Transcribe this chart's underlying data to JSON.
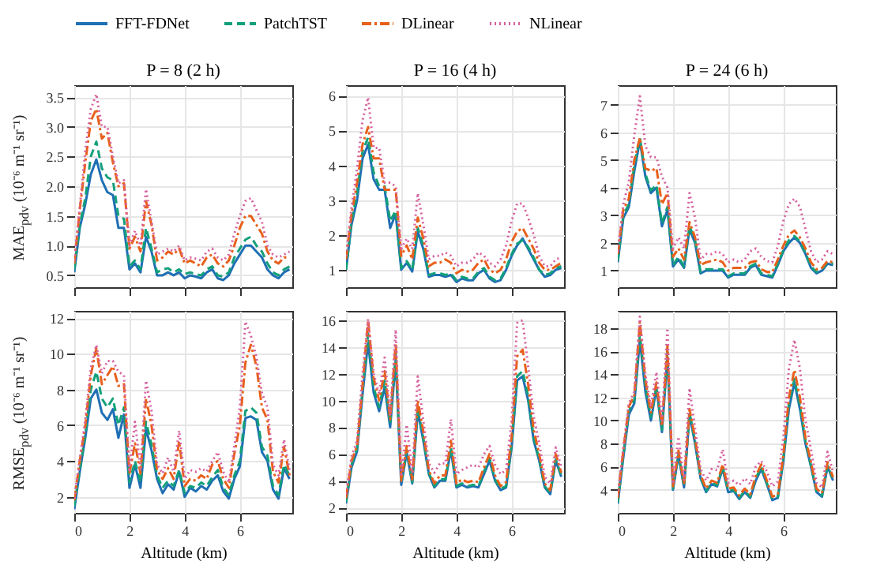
{
  "chart_data": [
    {
      "type": "line",
      "title": "P = 8 (2 h)",
      "ylabel": "MAE$_{pdv}$ (10⁻⁶ m⁻¹ sr⁻¹)",
      "legend": "top",
      "grid": true,
      "tick_labels": "y",
      "x": [
        0,
        0.2,
        0.4,
        0.6,
        0.8,
        1.0,
        1.2,
        1.4,
        1.6,
        1.8,
        2.0,
        2.2,
        2.4,
        2.6,
        2.8,
        3.0,
        3.2,
        3.4,
        3.6,
        3.8,
        4.0,
        4.2,
        4.4,
        4.6,
        4.8,
        5.0,
        5.2,
        5.4,
        5.6,
        5.8,
        6.0,
        6.2,
        6.4,
        6.6,
        6.8,
        7.0,
        7.2,
        7.4,
        7.6,
        7.8
      ],
      "xlim": [
        0,
        7.9
      ],
      "xticks": [
        {
          "value": 0,
          "label": null
        },
        {
          "value": 2,
          "label": null
        },
        {
          "value": 4,
          "label": null
        },
        {
          "value": 6,
          "label": null
        }
      ],
      "ylim": [
        0.3,
        3.7
      ],
      "yticks": [
        0.5,
        {
          "value": 1,
          "label": "1.0"
        },
        1.5,
        {
          "value": 2,
          "label": "2.0"
        },
        2.5,
        {
          "value": 3,
          "label": "3.0"
        },
        3.5
      ],
      "series": [
        {
          "name": "FFT-FDNet",
          "color": "#1f6fb4",
          "line_style": "solid",
          "values": [
            0.55,
            1.3,
            1.7,
            2.2,
            2.45,
            2.1,
            1.9,
            1.85,
            1.3,
            1.3,
            0.6,
            0.7,
            0.55,
            1.15,
            0.9,
            0.5,
            0.5,
            0.55,
            0.5,
            0.55,
            0.45,
            0.5,
            0.48,
            0.45,
            0.55,
            0.6,
            0.45,
            0.42,
            0.5,
            0.7,
            0.85,
            1.0,
            1.0,
            0.9,
            0.8,
            0.6,
            0.5,
            0.45,
            0.55,
            0.6
          ]
        },
        {
          "name": "PatchTST",
          "color": "#12a07a",
          "line_style": "dashed",
          "values": [
            0.6,
            1.35,
            1.8,
            2.5,
            2.75,
            2.3,
            2.15,
            2.1,
            1.5,
            1.45,
            0.65,
            0.75,
            0.6,
            1.3,
            0.95,
            0.55,
            0.6,
            0.62,
            0.55,
            0.6,
            0.52,
            0.55,
            0.52,
            0.5,
            0.6,
            0.65,
            0.5,
            0.48,
            0.55,
            0.8,
            0.95,
            1.1,
            1.15,
            1.0,
            0.9,
            0.7,
            0.55,
            0.5,
            0.6,
            0.65
          ]
        },
        {
          "name": "DLinear",
          "color": "#e8601c",
          "line_style": "dashdot",
          "values": [
            0.7,
            1.6,
            2.4,
            3.1,
            3.3,
            2.8,
            2.9,
            2.4,
            2.0,
            2.05,
            0.95,
            1.15,
            0.9,
            1.75,
            1.35,
            0.75,
            0.8,
            0.9,
            0.85,
            0.95,
            0.7,
            0.75,
            0.7,
            0.65,
            0.8,
            0.85,
            0.7,
            0.65,
            0.75,
            1.0,
            1.3,
            1.5,
            1.5,
            1.35,
            1.2,
            0.9,
            0.75,
            0.7,
            0.8,
            0.8
          ]
        },
        {
          "name": "NLinear",
          "color": "#d6609e",
          "line_style": "dotted",
          "values": [
            0.75,
            1.65,
            2.6,
            3.3,
            3.55,
            3.0,
            3.0,
            2.5,
            2.05,
            2.1,
            1.0,
            1.25,
            1.0,
            1.95,
            1.4,
            0.85,
            0.9,
            0.95,
            0.9,
            1.0,
            0.75,
            0.8,
            0.78,
            0.75,
            0.9,
            0.95,
            0.8,
            0.75,
            0.85,
            1.2,
            1.5,
            1.75,
            1.8,
            1.6,
            1.4,
            1.0,
            0.85,
            0.8,
            0.85,
            0.9
          ]
        }
      ]
    },
    {
      "type": "line",
      "title": "P = 16 (4 h)",
      "grid": true,
      "tick_labels": "y",
      "x": [
        0,
        0.2,
        0.4,
        0.6,
        0.8,
        1.0,
        1.2,
        1.4,
        1.6,
        1.8,
        2.0,
        2.2,
        2.4,
        2.6,
        2.8,
        3.0,
        3.2,
        3.4,
        3.6,
        3.8,
        4.0,
        4.2,
        4.4,
        4.6,
        4.8,
        5.0,
        5.2,
        5.4,
        5.6,
        5.8,
        6.0,
        6.2,
        6.4,
        6.6,
        6.8,
        7.0,
        7.2,
        7.4,
        7.6,
        7.8
      ],
      "xlim": [
        0,
        7.9
      ],
      "xticks": [
        {
          "value": 0,
          "label": null
        },
        {
          "value": 2,
          "label": null
        },
        {
          "value": 4,
          "label": null
        },
        {
          "value": 6,
          "label": null
        }
      ],
      "ylim": [
        0.5,
        6.3
      ],
      "yticks": [
        1,
        2,
        3,
        4,
        5,
        6
      ],
      "series": [
        {
          "name": "FFT-FDNet",
          "color": "#1f6fb4",
          "line_style": "solid",
          "values": [
            1.0,
            2.3,
            3.0,
            4.2,
            4.6,
            3.6,
            3.3,
            3.3,
            2.2,
            2.6,
            1.0,
            1.2,
            0.95,
            2.1,
            1.6,
            0.8,
            0.85,
            0.85,
            0.8,
            0.85,
            0.65,
            0.75,
            0.7,
            0.7,
            0.9,
            1.0,
            0.75,
            0.65,
            0.7,
            1.0,
            1.4,
            1.7,
            1.9,
            1.6,
            1.3,
            1.0,
            0.8,
            0.85,
            1.0,
            1.05
          ]
        },
        {
          "name": "PatchTST",
          "color": "#12a07a",
          "line_style": "dashed",
          "values": [
            1.0,
            2.4,
            3.2,
            4.4,
            4.8,
            3.8,
            3.4,
            3.4,
            2.4,
            2.7,
            1.05,
            1.25,
            1.0,
            2.2,
            1.7,
            0.85,
            0.9,
            0.9,
            0.85,
            0.9,
            0.7,
            0.8,
            0.75,
            0.75,
            0.95,
            1.05,
            0.8,
            0.7,
            0.75,
            1.05,
            1.45,
            1.75,
            1.85,
            1.65,
            1.35,
            1.0,
            0.85,
            0.9,
            1.05,
            1.1
          ]
        },
        {
          "name": "DLinear",
          "color": "#e8601c",
          "line_style": "dashdot",
          "values": [
            1.3,
            2.6,
            3.5,
            4.6,
            5.1,
            4.2,
            4.2,
            3.3,
            3.3,
            3.3,
            1.4,
            1.7,
            1.3,
            2.5,
            1.9,
            1.1,
            1.2,
            1.2,
            1.3,
            1.2,
            0.9,
            1.0,
            0.95,
            1.0,
            1.2,
            1.3,
            1.0,
            0.9,
            1.0,
            1.3,
            1.8,
            2.1,
            2.2,
            1.9,
            1.6,
            1.2,
            1.0,
            1.0,
            1.1,
            1.2
          ]
        },
        {
          "name": "NLinear",
          "color": "#d6609e",
          "line_style": "dotted",
          "values": [
            1.4,
            2.8,
            3.9,
            5.3,
            5.95,
            4.5,
            4.5,
            3.5,
            3.5,
            3.4,
            1.6,
            1.9,
            1.6,
            3.2,
            2.3,
            1.3,
            1.4,
            1.4,
            1.5,
            1.4,
            1.1,
            1.2,
            1.2,
            1.3,
            1.5,
            1.4,
            1.2,
            1.1,
            1.3,
            1.7,
            2.4,
            2.9,
            2.9,
            2.5,
            2.0,
            1.4,
            1.1,
            1.1,
            1.3,
            1.35
          ]
        }
      ]
    },
    {
      "type": "line",
      "title": "P = 24 (6 h)",
      "grid": true,
      "tick_labels": "y",
      "x": [
        0,
        0.2,
        0.4,
        0.6,
        0.8,
        1.0,
        1.2,
        1.4,
        1.6,
        1.8,
        2.0,
        2.2,
        2.4,
        2.6,
        2.8,
        3.0,
        3.2,
        3.4,
        3.6,
        3.8,
        4.0,
        4.2,
        4.4,
        4.6,
        4.8,
        5.0,
        5.2,
        5.4,
        5.6,
        5.8,
        6.0,
        6.2,
        6.4,
        6.6,
        6.8,
        7.0,
        7.2,
        7.4,
        7.6,
        7.8
      ],
      "xlim": [
        0,
        7.9
      ],
      "xticks": [
        {
          "value": 0,
          "label": null
        },
        {
          "value": 2,
          "label": null
        },
        {
          "value": 4,
          "label": null
        },
        {
          "value": 6,
          "label": null
        }
      ],
      "ylim": [
        0.4,
        7.7
      ],
      "yticks": [
        1,
        2,
        3,
        4,
        5,
        6,
        7
      ],
      "series": [
        {
          "name": "FFT-FDNet",
          "color": "#1f6fb4",
          "line_style": "solid",
          "values": [
            1.3,
            2.9,
            3.3,
            4.6,
            5.7,
            4.4,
            3.8,
            4.0,
            2.6,
            3.2,
            1.15,
            1.4,
            1.1,
            2.5,
            2.0,
            0.9,
            1.0,
            1.0,
            1.0,
            1.0,
            0.75,
            0.85,
            0.85,
            0.85,
            1.1,
            1.2,
            0.85,
            0.8,
            0.75,
            1.2,
            1.7,
            2.0,
            2.2,
            2.0,
            1.6,
            1.1,
            0.9,
            1.0,
            1.25,
            1.2
          ]
        },
        {
          "name": "PatchTST",
          "color": "#12a07a",
          "line_style": "dashed",
          "values": [
            1.35,
            3.0,
            3.4,
            4.8,
            5.8,
            4.5,
            3.9,
            4.1,
            2.7,
            3.3,
            1.2,
            1.5,
            1.15,
            2.6,
            2.1,
            0.95,
            1.05,
            1.05,
            1.05,
            1.05,
            0.8,
            0.9,
            0.9,
            0.9,
            1.15,
            1.25,
            0.9,
            0.85,
            0.8,
            1.25,
            1.75,
            2.1,
            2.25,
            2.05,
            1.65,
            1.15,
            0.95,
            1.05,
            1.3,
            1.25
          ]
        },
        {
          "name": "DLinear",
          "color": "#e8601c",
          "line_style": "dashdot",
          "values": [
            1.6,
            3.2,
            3.6,
            5.0,
            5.8,
            4.7,
            4.6,
            4.7,
            3.4,
            3.8,
            1.5,
            1.8,
            1.4,
            2.75,
            2.2,
            1.2,
            1.3,
            1.35,
            1.4,
            1.3,
            1.0,
            1.1,
            1.1,
            1.1,
            1.3,
            1.35,
            1.05,
            0.95,
            0.95,
            1.4,
            1.9,
            2.3,
            2.45,
            2.2,
            1.8,
            1.3,
            1.05,
            1.1,
            1.35,
            1.3
          ]
        },
        {
          "name": "NLinear",
          "color": "#d6609e",
          "line_style": "dotted",
          "values": [
            1.7,
            3.4,
            4.2,
            5.9,
            7.3,
            5.5,
            5.1,
            5.1,
            4.4,
            4.0,
            1.8,
            2.2,
            1.8,
            3.8,
            2.9,
            1.4,
            1.6,
            1.6,
            1.7,
            1.6,
            1.3,
            1.4,
            1.3,
            1.4,
            1.7,
            1.8,
            1.5,
            1.35,
            1.3,
            1.9,
            2.8,
            3.4,
            3.6,
            3.3,
            2.5,
            1.7,
            1.3,
            1.4,
            1.7,
            1.6
          ]
        }
      ]
    },
    {
      "type": "line",
      "xlabel": "Altitude (km)",
      "ylabel": "RMSE$_{pdv}$ (10⁻⁶ m⁻¹ sr⁻¹)",
      "grid": true,
      "x": [
        0,
        0.2,
        0.4,
        0.6,
        0.8,
        1.0,
        1.2,
        1.4,
        1.6,
        1.8,
        2.0,
        2.2,
        2.4,
        2.6,
        2.8,
        3.0,
        3.2,
        3.4,
        3.6,
        3.8,
        4.0,
        4.2,
        4.4,
        4.6,
        4.8,
        5.0,
        5.2,
        5.4,
        5.6,
        5.8,
        6.0,
        6.2,
        6.4,
        6.6,
        6.8,
        7.0,
        7.2,
        7.4,
        7.6,
        7.8
      ],
      "xlim": [
        0,
        7.9
      ],
      "xticks": [
        0,
        2,
        4,
        6
      ],
      "ylim": [
        1.1,
        12.4
      ],
      "yticks": [
        2,
        4,
        6,
        8,
        10,
        12
      ],
      "series": [
        {
          "name": "FFT-FDNet",
          "color": "#1f6fb4",
          "line_style": "solid",
          "values": [
            1.3,
            3.4,
            5.3,
            7.5,
            8.0,
            6.7,
            6.3,
            6.9,
            5.3,
            6.6,
            2.5,
            3.8,
            2.5,
            5.8,
            4.6,
            3.0,
            2.2,
            2.7,
            2.4,
            3.4,
            2.0,
            2.5,
            2.3,
            2.6,
            2.4,
            2.9,
            3.2,
            2.3,
            1.9,
            3.0,
            3.7,
            6.4,
            6.5,
            6.3,
            4.5,
            4.0,
            2.4,
            1.9,
            3.6,
            3.0
          ]
        },
        {
          "name": "PatchTST",
          "color": "#12a07a",
          "line_style": "dashed",
          "values": [
            1.5,
            3.5,
            5.5,
            8.0,
            9.0,
            7.5,
            7.0,
            7.5,
            6.0,
            7.0,
            2.8,
            4.0,
            2.8,
            6.2,
            4.9,
            3.2,
            2.5,
            2.9,
            2.6,
            3.5,
            2.2,
            2.6,
            2.5,
            2.8,
            2.6,
            3.1,
            3.5,
            2.5,
            2.1,
            3.2,
            4.0,
            6.8,
            7.0,
            6.7,
            4.8,
            4.3,
            2.6,
            2.1,
            3.8,
            3.2
          ]
        },
        {
          "name": "DLinear",
          "color": "#e8601c",
          "line_style": "dashdot",
          "values": [
            1.8,
            4.0,
            6.0,
            8.8,
            10.3,
            8.3,
            8.8,
            9.3,
            8.2,
            8.3,
            3.3,
            5.0,
            3.3,
            7.5,
            6.0,
            3.5,
            3.0,
            3.6,
            3.0,
            5.1,
            2.6,
            3.0,
            2.9,
            3.2,
            3.0,
            3.8,
            4.0,
            3.0,
            2.5,
            4.4,
            6.0,
            9.5,
            10.5,
            9.3,
            7.0,
            6.3,
            3.4,
            2.8,
            4.8,
            3.2
          ]
        },
        {
          "name": "NLinear",
          "color": "#d6609e",
          "line_style": "dotted",
          "values": [
            1.9,
            4.1,
            6.3,
            9.2,
            10.5,
            8.9,
            9.6,
            9.6,
            9.0,
            8.8,
            3.5,
            6.2,
            3.6,
            8.5,
            6.8,
            3.8,
            3.3,
            4.2,
            3.4,
            5.7,
            3.0,
            3.5,
            3.4,
            3.6,
            3.4,
            4.0,
            4.5,
            3.4,
            2.8,
            4.8,
            7.0,
            11.8,
            11.0,
            9.8,
            7.8,
            7.0,
            3.8,
            3.2,
            5.2,
            3.5
          ]
        }
      ]
    },
    {
      "type": "line",
      "xlabel": "Altitude (km)",
      "grid": true,
      "x": [
        0,
        0.2,
        0.4,
        0.6,
        0.8,
        1.0,
        1.2,
        1.4,
        1.6,
        1.8,
        2.0,
        2.2,
        2.4,
        2.6,
        2.8,
        3.0,
        3.2,
        3.4,
        3.6,
        3.8,
        4.0,
        4.2,
        4.4,
        4.6,
        4.8,
        5.0,
        5.2,
        5.4,
        5.6,
        5.8,
        6.0,
        6.2,
        6.4,
        6.6,
        6.8,
        7.0,
        7.2,
        7.4,
        7.6,
        7.8
      ],
      "xlim": [
        0,
        7.9
      ],
      "xticks": [
        0,
        2,
        4,
        6
      ],
      "ylim": [
        1.6,
        16.7
      ],
      "yticks": [
        2,
        4,
        6,
        8,
        10,
        12,
        14,
        16
      ],
      "series": [
        {
          "name": "FFT-FDNet",
          "color": "#1f6fb4",
          "line_style": "solid",
          "values": [
            2.3,
            5.0,
            6.2,
            10.5,
            14.3,
            10.6,
            9.2,
            11.0,
            8.0,
            13.0,
            3.7,
            6.1,
            3.8,
            9.2,
            7.0,
            4.5,
            3.5,
            4.0,
            4.0,
            6.3,
            3.5,
            3.7,
            3.5,
            3.6,
            3.5,
            4.5,
            5.5,
            4.0,
            3.3,
            3.5,
            6.5,
            11.5,
            11.8,
            10.0,
            7.0,
            5.5,
            3.5,
            3.0,
            5.5,
            4.3
          ]
        },
        {
          "name": "PatchTST",
          "color": "#12a07a",
          "line_style": "dashed",
          "values": [
            2.4,
            5.2,
            6.4,
            10.8,
            15.0,
            11.0,
            9.5,
            11.5,
            8.3,
            13.5,
            3.8,
            6.3,
            3.9,
            9.4,
            7.2,
            4.6,
            3.6,
            4.1,
            4.1,
            6.5,
            3.6,
            3.8,
            3.6,
            3.7,
            3.6,
            4.7,
            5.7,
            4.1,
            3.4,
            3.6,
            6.7,
            11.8,
            12.2,
            10.3,
            7.2,
            5.6,
            3.6,
            3.1,
            5.6,
            4.4
          ]
        },
        {
          "name": "DLinear",
          "color": "#e8601c",
          "line_style": "dashdot",
          "values": [
            2.7,
            5.5,
            6.6,
            11.2,
            16.0,
            11.7,
            10.0,
            12.2,
            8.6,
            14.3,
            4.0,
            6.6,
            4.1,
            10.0,
            7.7,
            4.8,
            3.8,
            4.4,
            4.4,
            7.0,
            3.8,
            4.1,
            3.9,
            4.0,
            3.9,
            5.0,
            6.0,
            4.4,
            3.6,
            3.9,
            7.3,
            13.3,
            13.8,
            11.2,
            7.8,
            6.0,
            3.8,
            3.3,
            6.0,
            4.6
          ]
        },
        {
          "name": "NLinear",
          "color": "#d6609e",
          "line_style": "dotted",
          "values": [
            3.0,
            5.8,
            7.0,
            12.0,
            16.1,
            12.0,
            10.5,
            13.2,
            8.9,
            15.3,
            4.3,
            8.2,
            4.6,
            11.8,
            8.5,
            5.3,
            4.6,
            5.3,
            5.3,
            8.6,
            4.5,
            4.8,
            5.0,
            5.2,
            5.0,
            6.0,
            6.6,
            5.2,
            4.5,
            4.8,
            8.5,
            15.8,
            16.0,
            12.5,
            8.8,
            6.8,
            4.3,
            3.8,
            6.5,
            5.0
          ]
        }
      ]
    },
    {
      "type": "line",
      "xlabel": "Altitude (km)",
      "grid": true,
      "x": [
        0,
        0.2,
        0.4,
        0.6,
        0.8,
        1.0,
        1.2,
        1.4,
        1.6,
        1.8,
        2.0,
        2.2,
        2.4,
        2.6,
        2.8,
        3.0,
        3.2,
        3.4,
        3.6,
        3.8,
        4.0,
        4.2,
        4.4,
        4.6,
        4.8,
        5.0,
        5.2,
        5.4,
        5.6,
        5.8,
        6.0,
        6.2,
        6.4,
        6.6,
        6.8,
        7.0,
        7.2,
        7.4,
        7.6,
        7.8
      ],
      "xlim": [
        0,
        7.9
      ],
      "xticks": [
        0,
        2,
        4,
        6
      ],
      "ylim": [
        2,
        19.5
      ],
      "yticks": [
        4,
        6,
        8,
        10,
        12,
        14,
        16,
        18
      ],
      "series": [
        {
          "name": "FFT-FDNet",
          "color": "#1f6fb4",
          "line_style": "solid",
          "values": [
            2.8,
            6.8,
            10.5,
            11.5,
            17.0,
            12.5,
            10.0,
            12.8,
            9.0,
            15.5,
            4.0,
            7.0,
            4.2,
            10.5,
            8.0,
            5.0,
            3.8,
            4.5,
            4.3,
            5.8,
            3.8,
            3.9,
            3.2,
            3.8,
            3.3,
            4.8,
            5.8,
            4.5,
            3.1,
            3.3,
            6.5,
            11.0,
            13.3,
            11.0,
            8.0,
            6.0,
            3.8,
            3.4,
            6.0,
            4.8
          ]
        },
        {
          "name": "PatchTST",
          "color": "#12a07a",
          "line_style": "dashed",
          "values": [
            2.9,
            7.0,
            10.8,
            11.8,
            17.5,
            13.0,
            10.3,
            13.0,
            9.2,
            16.0,
            4.1,
            7.2,
            4.3,
            10.7,
            8.2,
            5.1,
            3.9,
            4.6,
            4.4,
            6.0,
            3.9,
            4.0,
            3.3,
            3.9,
            3.4,
            5.0,
            6.0,
            4.6,
            3.2,
            3.4,
            6.7,
            11.5,
            13.6,
            11.3,
            8.2,
            6.1,
            3.9,
            3.5,
            6.1,
            4.9
          ]
        },
        {
          "name": "DLinear",
          "color": "#e8601c",
          "line_style": "dashdot",
          "values": [
            3.3,
            7.4,
            11.2,
            12.2,
            18.5,
            13.5,
            10.7,
            13.3,
            9.5,
            16.5,
            4.3,
            7.4,
            4.5,
            11.0,
            8.5,
            5.3,
            4.1,
            4.8,
            4.6,
            6.2,
            4.1,
            4.2,
            3.5,
            4.1,
            3.6,
            5.2,
            6.2,
            4.8,
            3.4,
            3.6,
            7.0,
            12.0,
            14.4,
            12.0,
            8.5,
            6.4,
            4.1,
            3.7,
            6.4,
            5.1
          ]
        },
        {
          "name": "NLinear",
          "color": "#d6609e",
          "line_style": "dotted",
          "values": [
            3.5,
            7.6,
            11.5,
            12.5,
            19.0,
            14.0,
            11.2,
            14.2,
            10.0,
            18.0,
            4.5,
            8.6,
            4.8,
            12.8,
            9.3,
            5.8,
            4.8,
            5.8,
            5.7,
            7.5,
            4.6,
            4.8,
            4.4,
            5.0,
            4.5,
            6.0,
            6.5,
            5.6,
            4.3,
            4.7,
            8.6,
            14.5,
            17.0,
            14.5,
            10.0,
            7.5,
            4.6,
            4.2,
            7.3,
            5.5
          ]
        }
      ]
    }
  ]
}
